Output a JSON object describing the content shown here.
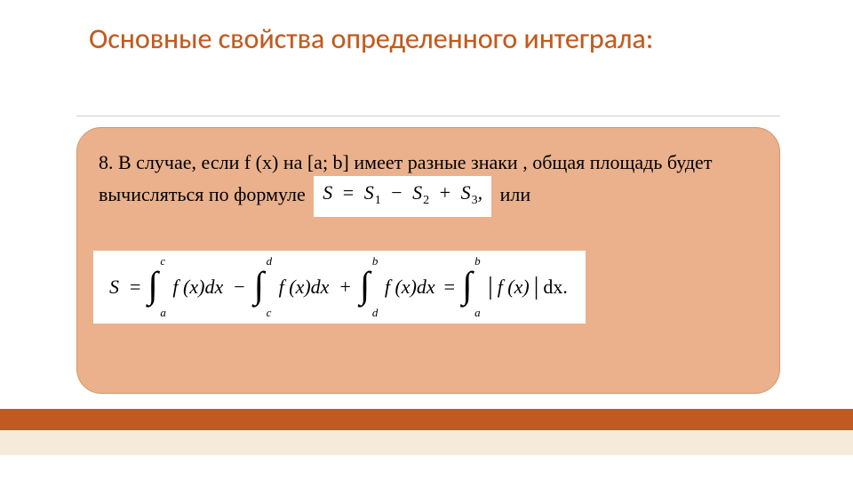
{
  "title": "Основные свойства определенного интеграла:",
  "body": {
    "line1": "8. В случае, если f (x) на [a; b] имеет разные знаки , общая площадь будет",
    "line2a": "вычисляться по формуле",
    "line2b": "или"
  },
  "inline_formula": {
    "lhs": "S",
    "eq": "=",
    "terms": [
      {
        "var": "S",
        "sub": "1"
      },
      {
        "op": "−"
      },
      {
        "var": "S",
        "sub": "2"
      },
      {
        "op": "+"
      },
      {
        "var": "S",
        "sub": "3"
      }
    ],
    "trailing": ","
  },
  "block_formula": {
    "S": "S",
    "eq": "=",
    "integrals": [
      {
        "lower": "a",
        "upper": "c",
        "integrand": "f (x)dx",
        "after_op": "−"
      },
      {
        "lower": "c",
        "upper": "d",
        "integrand": "f (x)dx",
        "after_op": "+"
      },
      {
        "lower": "d",
        "upper": "b",
        "integrand": "f (x)dx",
        "after_op": "="
      },
      {
        "lower": "a",
        "upper": "b",
        "integrand_abs": "f (x)",
        "abs": true,
        "dx": "dx.",
        "after_op": ""
      }
    ]
  },
  "style": {
    "title_color": "#c45a1a",
    "title_fontsize": 32,
    "panel_bg": "#eab18c",
    "panel_border": "#d0986a",
    "panel_radius": 28,
    "body_fontsize": 22,
    "formula_bg": "#ffffff",
    "hr_color": "#cfcfcf",
    "bottom_bar_color": "#c05a23",
    "bottom_cream_color": "#f6ebdb",
    "page_bg": "#ffffff"
  }
}
